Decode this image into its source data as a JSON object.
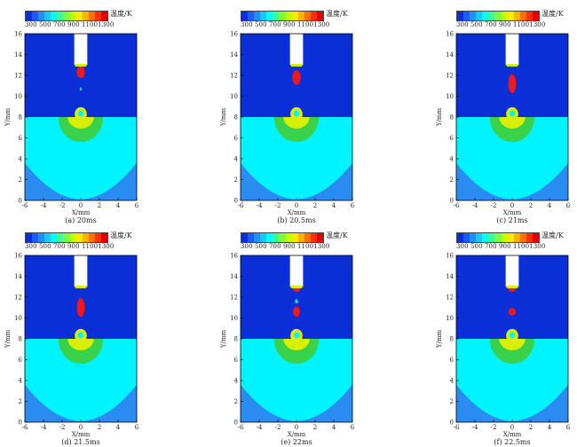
{
  "colorbar": {
    "title": "温度/K",
    "ticks": "300 500 700 900 11001300",
    "colors": [
      "#0a2fd6",
      "#1a5cff",
      "#1e90ff",
      "#18c8ff",
      "#00ffff",
      "#3cff9a",
      "#7cff3c",
      "#c8ff00",
      "#ffe800",
      "#ffb000",
      "#ff7000",
      "#ff3000",
      "#e00000"
    ]
  },
  "axes": {
    "xlabel": "X/mm",
    "ylabel": "Y/mm",
    "xticks": [
      "-6",
      "-4",
      "-2",
      "0",
      "2",
      "4",
      "6"
    ],
    "yticks": [
      "0",
      "2",
      "4",
      "6",
      "8",
      "10",
      "12",
      "14",
      "16"
    ]
  },
  "colors": {
    "gas": "#0a2fd6",
    "liquid": "#00f4ff",
    "bottom": "#2a8cf0",
    "green_ring": "#3ad24a",
    "yellow": "#d8f000",
    "hot": "#f01818",
    "nozzle": "#ffffff"
  },
  "panels": [
    {
      "caption": "(a) 20ms"
    },
    {
      "caption": "(b) 20.5ms"
    },
    {
      "caption": "(c) 21ms"
    },
    {
      "caption": "(d) 21.5ms"
    },
    {
      "caption": "(e) 22ms"
    },
    {
      "caption": "(f) 22.5ms"
    }
  ]
}
